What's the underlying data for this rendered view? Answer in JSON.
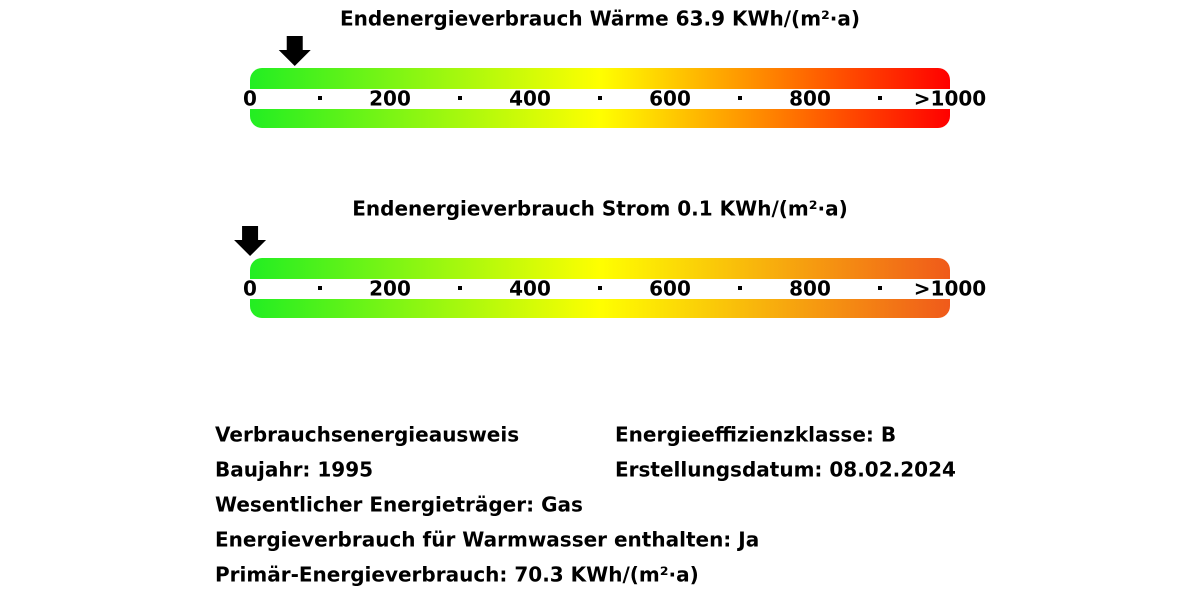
{
  "scales": [
    {
      "title": "Endenergieverbrauch Wärme 63.9 KWh/(m²·a)",
      "value": 63.9,
      "range": [
        0,
        1000
      ],
      "ticks": [
        0,
        200,
        400,
        600,
        800,
        {
          "value": 1000,
          "label": ">1000"
        }
      ],
      "colors": [
        "#22ee22",
        "#ffff00",
        "#ff0000"
      ]
    },
    {
      "title": "Endenergieverbrauch Strom 0.1 KWh/(m²·a)",
      "value": 0.1,
      "range": [
        0,
        1000
      ],
      "ticks": [
        0,
        200,
        400,
        600,
        800,
        {
          "value": 1000,
          "label": ">1000"
        }
      ],
      "colors": [
        "#22ee22",
        "#ffff00",
        "#f05a1a"
      ]
    }
  ],
  "details": [
    [
      "Verbrauchsenergieausweis",
      "Energieeffizienzklasse: B"
    ],
    [
      "Baujahr: 1995",
      "Erstellungsdatum: 08.02.2024"
    ],
    [
      "Wesentlicher Energieträger: Gas"
    ],
    [
      "Energieverbrauch für Warmwasser enthalten: Ja"
    ],
    [
      "Primär-Energieverbrauch: 70.3 KWh/(m²·a)"
    ]
  ]
}
